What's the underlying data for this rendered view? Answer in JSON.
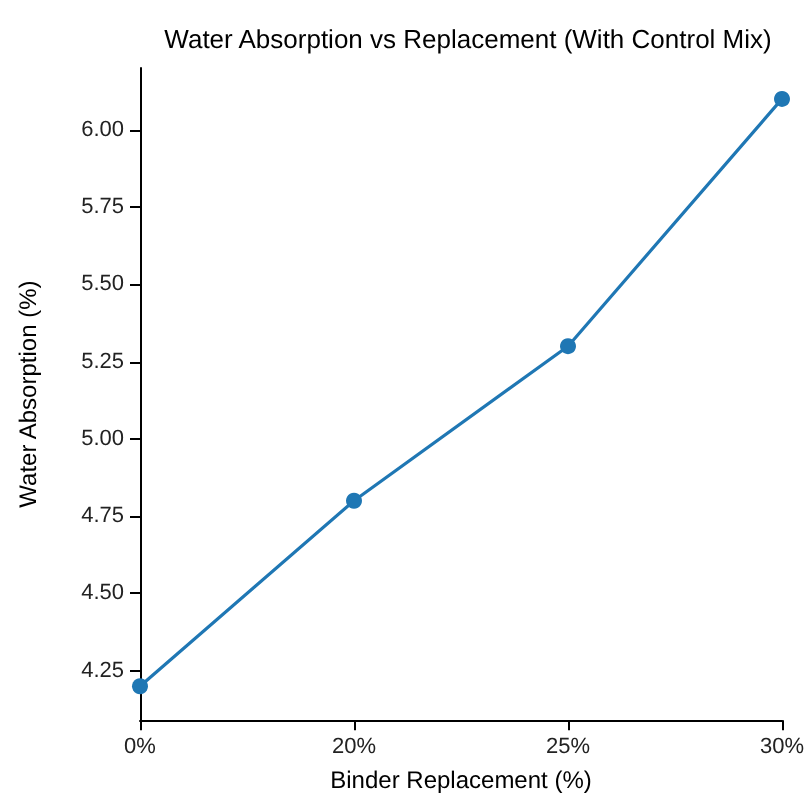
{
  "chart_data": {
    "type": "line",
    "title": "Water Absorption vs Replacement (With Control Mix)",
    "xlabel": "Binder Replacement (%)",
    "ylabel": "Water Absorption (%)",
    "categories": [
      "0%",
      "20%",
      "25%",
      "30%"
    ],
    "series": [
      {
        "color": "#1f77b4",
        "values": [
          4.2,
          4.8,
          5.3,
          6.1
        ]
      }
    ],
    "ylim": [
      4.09,
      6.2
    ],
    "yticks": [
      {
        "value": 4.25,
        "label": "4.25"
      },
      {
        "value": 4.5,
        "label": "4.50"
      },
      {
        "value": 4.75,
        "label": "4.75"
      },
      {
        "value": 5,
        "label": "5.00"
      },
      {
        "value": 5.25,
        "label": "5.25"
      },
      {
        "value": 5.5,
        "label": "5.50"
      },
      {
        "value": 5.75,
        "label": "5.75"
      },
      {
        "value": 6,
        "label": "6.00"
      }
    ],
    "marker": "circle",
    "line_style": "solid",
    "grid": false
  }
}
